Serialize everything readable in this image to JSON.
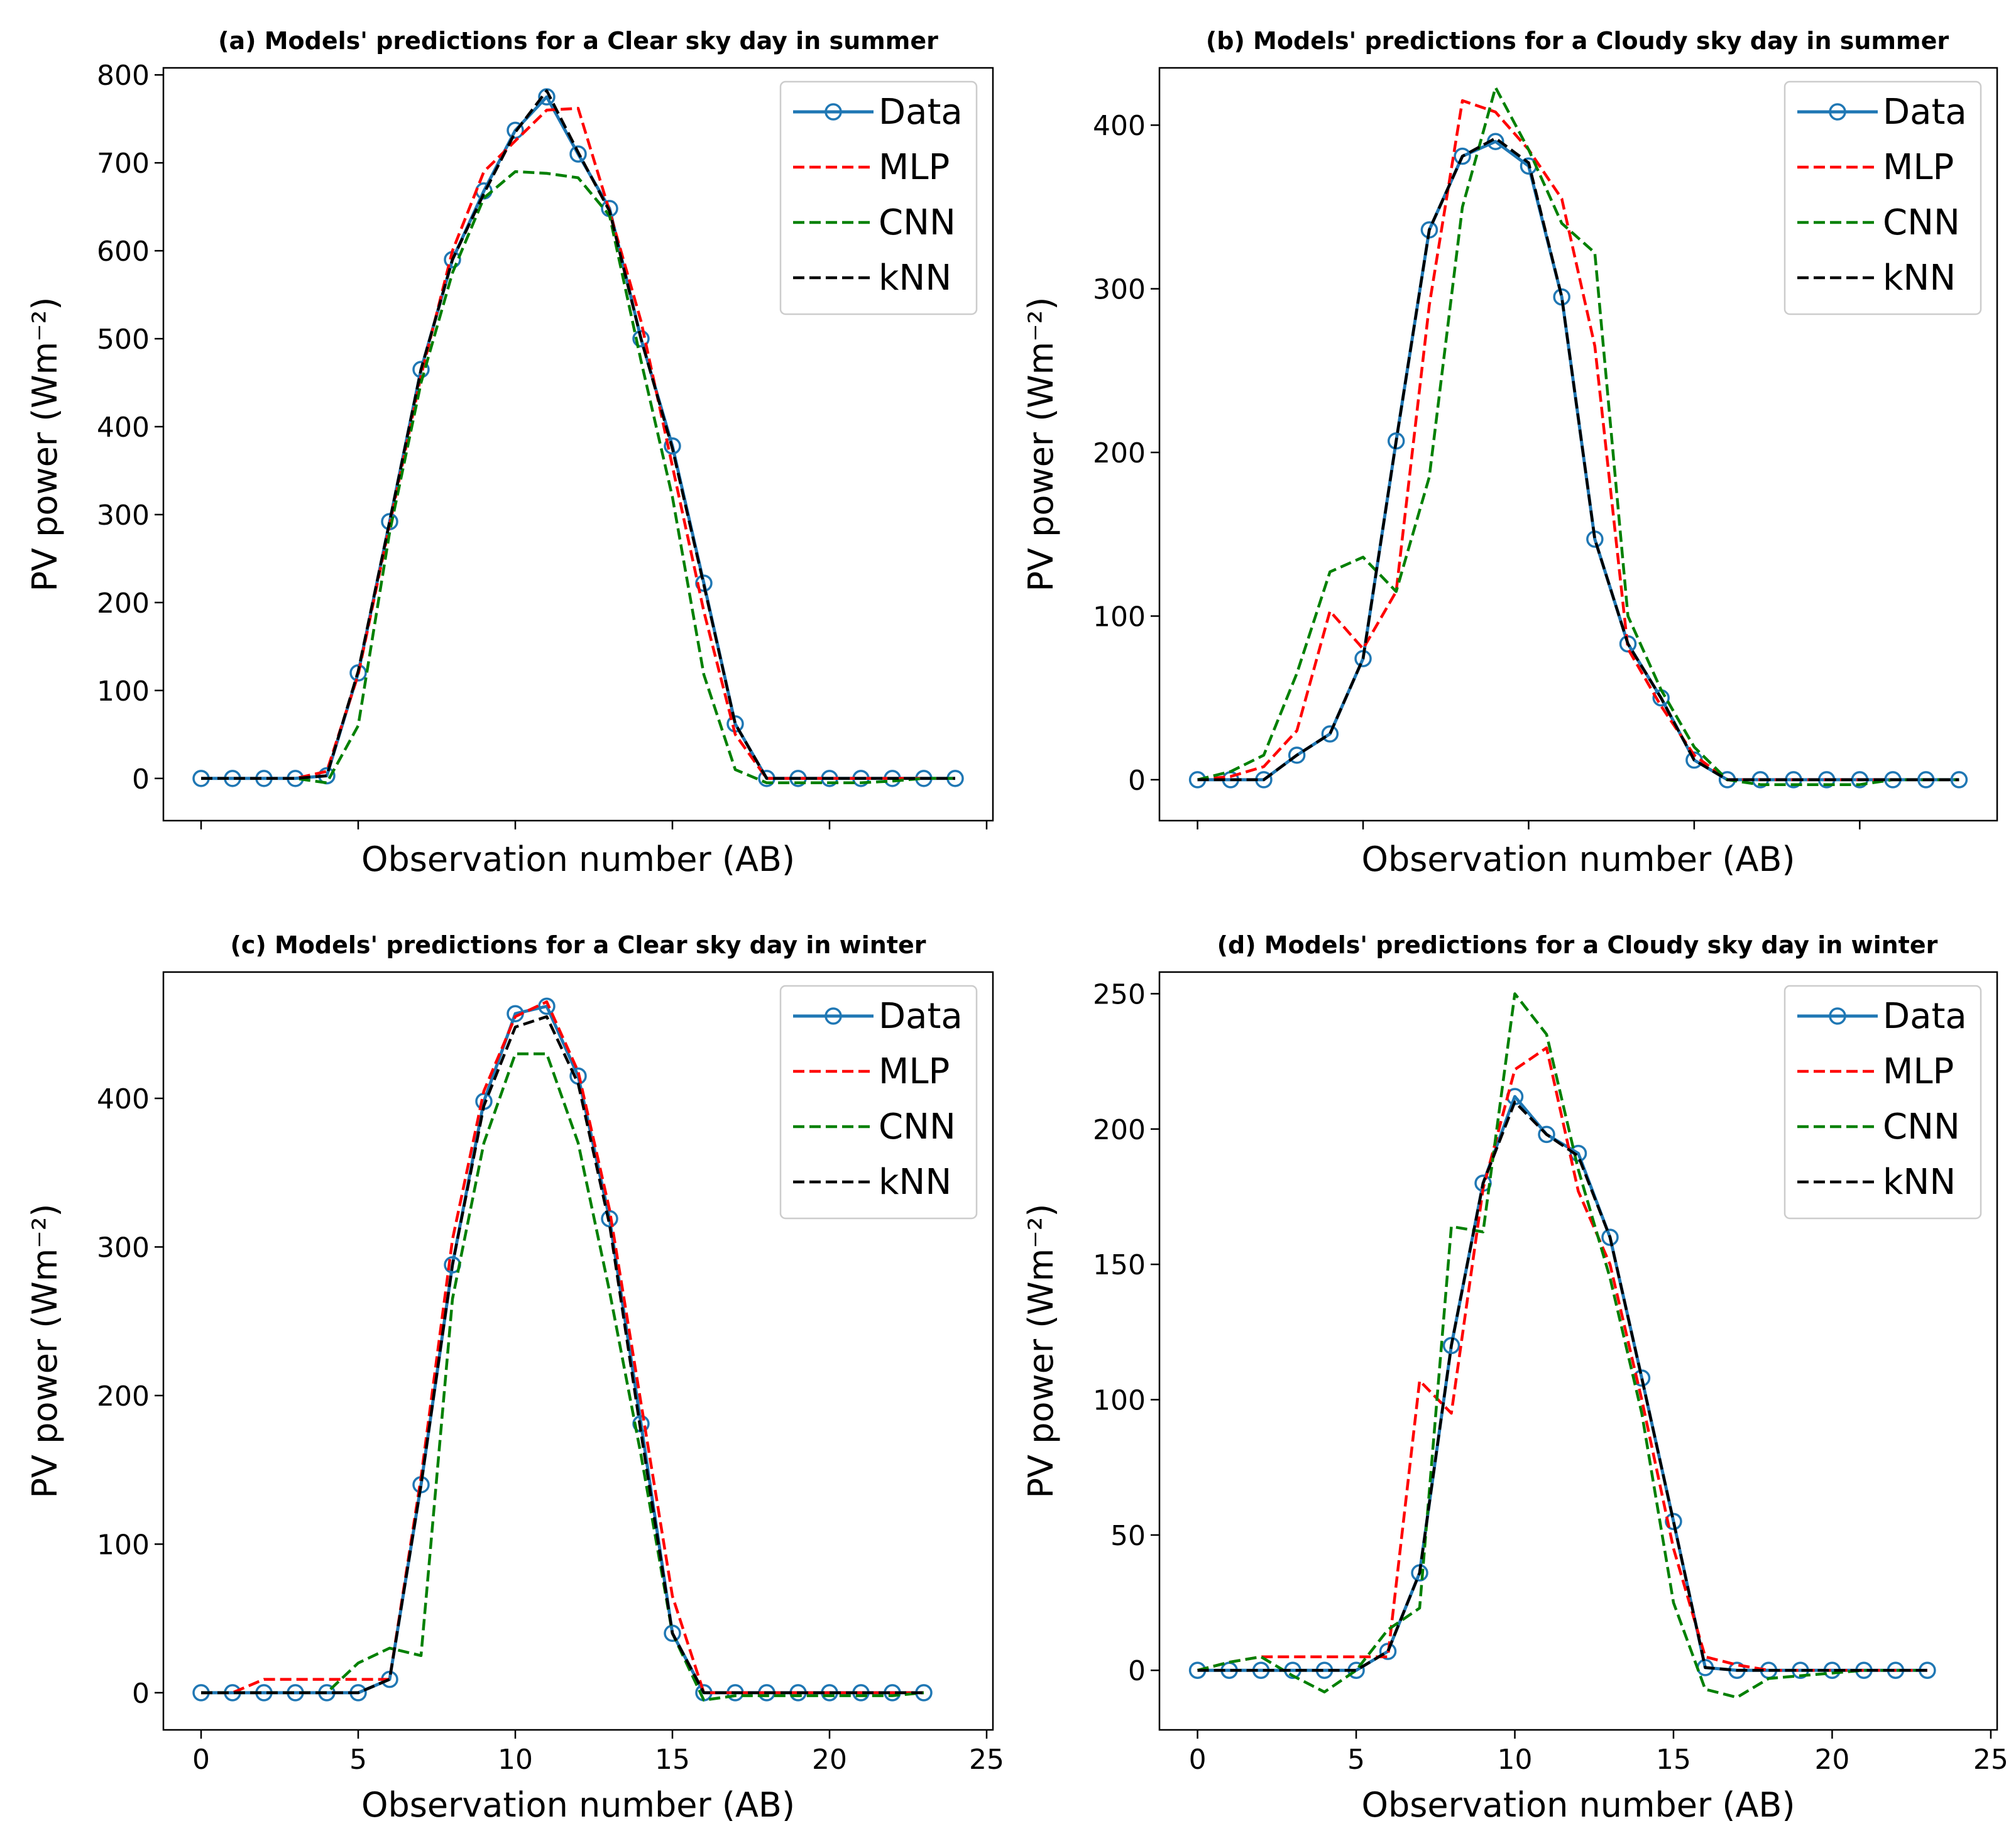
{
  "chart_data": [
    {
      "type": "line",
      "title": "(a) Models' predictions for a Clear sky day in summer",
      "xlabel": "Observation number (AB)",
      "ylabel": "PV power (Wm⁻²)",
      "xlim": [
        -1.2,
        25.2
      ],
      "ylim": [
        -48,
        808
      ],
      "xticks": [
        0,
        5,
        10,
        15,
        20,
        25
      ],
      "xtick_labels": [
        "",
        "",
        "",
        "",
        "",
        ""
      ],
      "yticks": [
        0,
        100,
        200,
        300,
        400,
        500,
        600,
        700,
        800
      ],
      "ytick_labels": [
        "0",
        "100",
        "200",
        "300",
        "400",
        "500",
        "600",
        "700",
        "800"
      ],
      "legend_position": "top-right",
      "grid": false,
      "x": [
        0,
        1,
        2,
        3,
        4,
        5,
        6,
        7,
        8,
        9,
        10,
        11,
        12,
        13,
        14,
        15,
        16,
        17,
        18,
        19,
        20,
        21,
        22,
        23,
        24
      ],
      "series": [
        {
          "name": "Data",
          "color": "#1f77b4",
          "style": "solid-marker",
          "values": [
            0,
            0,
            0,
            0,
            3,
            120,
            292,
            465,
            590,
            668,
            737,
            775,
            710,
            648,
            500,
            378,
            222,
            62,
            0,
            0,
            0,
            0,
            0,
            0,
            0
          ]
        },
        {
          "name": "MLP",
          "color": "#ff0000",
          "style": "dashed",
          "values": [
            0,
            0,
            0,
            0,
            8,
            118,
            288,
            458,
            600,
            690,
            725,
            760,
            762,
            645,
            520,
            355,
            190,
            50,
            0,
            0,
            0,
            0,
            0,
            0,
            0
          ]
        },
        {
          "name": "CNN",
          "color": "#008000",
          "style": "dashed",
          "values": [
            0,
            0,
            0,
            0,
            -5,
            60,
            280,
            450,
            575,
            660,
            690,
            688,
            683,
            640,
            475,
            320,
            118,
            10,
            -5,
            -5,
            -5,
            -5,
            -3,
            0,
            0
          ]
        },
        {
          "name": "kNN",
          "color": "#000000",
          "style": "dashed",
          "values": [
            0,
            0,
            0,
            0,
            3,
            122,
            292,
            465,
            590,
            665,
            735,
            782,
            712,
            645,
            500,
            375,
            220,
            62,
            0,
            0,
            0,
            0,
            0,
            0,
            0
          ]
        }
      ]
    },
    {
      "type": "line",
      "title": "(b) Models' predictions for a Cloudy sky day in summer",
      "xlabel": "Observation number (AB)",
      "ylabel": "PV power (Wm⁻²)",
      "xlim": [
        -1.15,
        24.15
      ],
      "ylim": [
        -25,
        435
      ],
      "xticks": [
        0,
        5,
        10,
        15,
        20
      ],
      "xtick_labels": [
        "",
        "",
        "",
        "",
        ""
      ],
      "yticks": [
        0,
        100,
        200,
        300,
        400
      ],
      "ytick_labels": [
        "0",
        "100",
        "200",
        "300",
        "400"
      ],
      "legend_position": "top-right",
      "grid": false,
      "x": [
        0,
        1,
        2,
        3,
        4,
        5,
        6,
        7,
        8,
        9,
        10,
        11,
        12,
        13,
        14,
        15,
        16,
        17,
        18,
        19,
        20,
        21,
        22,
        23
      ],
      "series": [
        {
          "name": "Data",
          "color": "#1f77b4",
          "style": "solid-marker",
          "values": [
            0,
            0,
            0,
            15,
            28,
            74,
            207,
            336,
            381,
            390,
            375,
            295,
            147,
            83,
            50,
            12,
            0,
            0,
            0,
            0,
            0,
            0,
            0,
            0
          ]
        },
        {
          "name": "MLP",
          "color": "#ff0000",
          "style": "dashed",
          "values": [
            0,
            2,
            8,
            30,
            103,
            80,
            115,
            290,
            415,
            408,
            385,
            355,
            265,
            80,
            45,
            15,
            0,
            0,
            0,
            0,
            0,
            0,
            0,
            0
          ]
        },
        {
          "name": "CNN",
          "color": "#008000",
          "style": "dashed",
          "values": [
            0,
            5,
            15,
            65,
            127,
            136,
            115,
            185,
            350,
            423,
            385,
            340,
            322,
            100,
            55,
            20,
            0,
            -3,
            -3,
            -3,
            -3,
            0,
            0,
            0
          ]
        },
        {
          "name": "kNN",
          "color": "#000000",
          "style": "dashed",
          "values": [
            0,
            0,
            0,
            15,
            28,
            74,
            207,
            336,
            381,
            392,
            377,
            295,
            147,
            83,
            50,
            12,
            0,
            0,
            0,
            0,
            0,
            0,
            0,
            0
          ]
        }
      ]
    },
    {
      "type": "line",
      "title": "(c) Models' predictions for a Clear sky day in winter",
      "xlabel": "Observation number (AB)",
      "ylabel": "PV power (Wm⁻²)",
      "xlim": [
        -1.2,
        25.2
      ],
      "ylim": [
        -25,
        485
      ],
      "xticks": [
        0,
        5,
        10,
        15,
        20,
        25
      ],
      "xtick_labels": [
        "0",
        "5",
        "10",
        "15",
        "20",
        "25"
      ],
      "yticks": [
        0,
        100,
        200,
        300,
        400
      ],
      "ytick_labels": [
        "0",
        "100",
        "200",
        "300",
        "400"
      ],
      "legend_position": "top-right",
      "grid": false,
      "x": [
        0,
        1,
        2,
        3,
        4,
        5,
        6,
        7,
        8,
        9,
        10,
        11,
        12,
        13,
        14,
        15,
        16,
        17,
        18,
        19,
        20,
        21,
        22,
        23
      ],
      "series": [
        {
          "name": "Data",
          "color": "#1f77b4",
          "style": "solid-marker",
          "values": [
            0,
            0,
            0,
            0,
            0,
            0,
            9,
            140,
            288,
            398,
            457,
            462,
            415,
            319,
            181,
            40,
            0,
            0,
            0,
            0,
            0,
            0,
            0,
            0
          ]
        },
        {
          "name": "MLP",
          "color": "#ff0000",
          "style": "dashed",
          "values": [
            0,
            0,
            9,
            9,
            9,
            9,
            9,
            145,
            305,
            405,
            455,
            465,
            418,
            325,
            195,
            65,
            0,
            0,
            0,
            0,
            0,
            0,
            0,
            0
          ]
        },
        {
          "name": "CNN",
          "color": "#008000",
          "style": "dashed",
          "values": [
            0,
            0,
            0,
            0,
            0,
            20,
            30,
            25,
            265,
            370,
            430,
            430,
            370,
            270,
            160,
            40,
            -5,
            -2,
            -2,
            -2,
            -2,
            -2,
            -2,
            0
          ]
        },
        {
          "name": "kNN",
          "color": "#000000",
          "style": "dashed",
          "values": [
            0,
            0,
            0,
            0,
            0,
            0,
            9,
            140,
            288,
            395,
            448,
            455,
            410,
            315,
            175,
            40,
            0,
            0,
            0,
            0,
            0,
            0,
            0,
            0
          ]
        }
      ]
    },
    {
      "type": "line",
      "title": "(d) Models' predictions for a Cloudy sky day in winter",
      "xlabel": "Observation number (AB)",
      "ylabel": "PV power (Wm⁻²)",
      "xlim": [
        -1.2,
        25.2
      ],
      "ylim": [
        -22,
        258
      ],
      "xticks": [
        0,
        5,
        10,
        15,
        20,
        25
      ],
      "xtick_labels": [
        "0",
        "5",
        "10",
        "15",
        "20",
        "25"
      ],
      "yticks": [
        0,
        50,
        100,
        150,
        200,
        250
      ],
      "ytick_labels": [
        "0",
        "50",
        "100",
        "150",
        "200",
        "250"
      ],
      "legend_position": "top-right",
      "grid": false,
      "x": [
        0,
        1,
        2,
        3,
        4,
        5,
        6,
        7,
        8,
        9,
        10,
        11,
        12,
        13,
        14,
        15,
        16,
        17,
        18,
        19,
        20,
        21,
        22,
        23
      ],
      "series": [
        {
          "name": "Data",
          "color": "#1f77b4",
          "style": "solid-marker",
          "values": [
            0,
            0,
            0,
            0,
            0,
            0,
            7,
            36,
            120,
            180,
            212,
            198,
            191,
            160,
            108,
            55,
            1,
            0,
            0,
            0,
            0,
            0,
            0,
            0
          ]
        },
        {
          "name": "MLP",
          "color": "#ff0000",
          "style": "dashed",
          "values": [
            0,
            3,
            5,
            5,
            5,
            5,
            5,
            107,
            95,
            178,
            222,
            230,
            177,
            150,
            100,
            45,
            5,
            2,
            0,
            0,
            0,
            0,
            0,
            0
          ]
        },
        {
          "name": "CNN",
          "color": "#008000",
          "style": "dashed",
          "values": [
            0,
            3,
            5,
            -2,
            -8,
            0,
            15,
            23,
            164,
            162,
            250,
            235,
            185,
            145,
            95,
            25,
            -7,
            -10,
            -3,
            -2,
            -1,
            0,
            0,
            0
          ]
        },
        {
          "name": "kNN",
          "color": "#000000",
          "style": "dashed",
          "values": [
            0,
            0,
            0,
            0,
            0,
            0,
            7,
            36,
            120,
            180,
            210,
            198,
            190,
            160,
            108,
            55,
            1,
            0,
            0,
            0,
            0,
            0,
            0,
            0
          ]
        }
      ]
    }
  ]
}
